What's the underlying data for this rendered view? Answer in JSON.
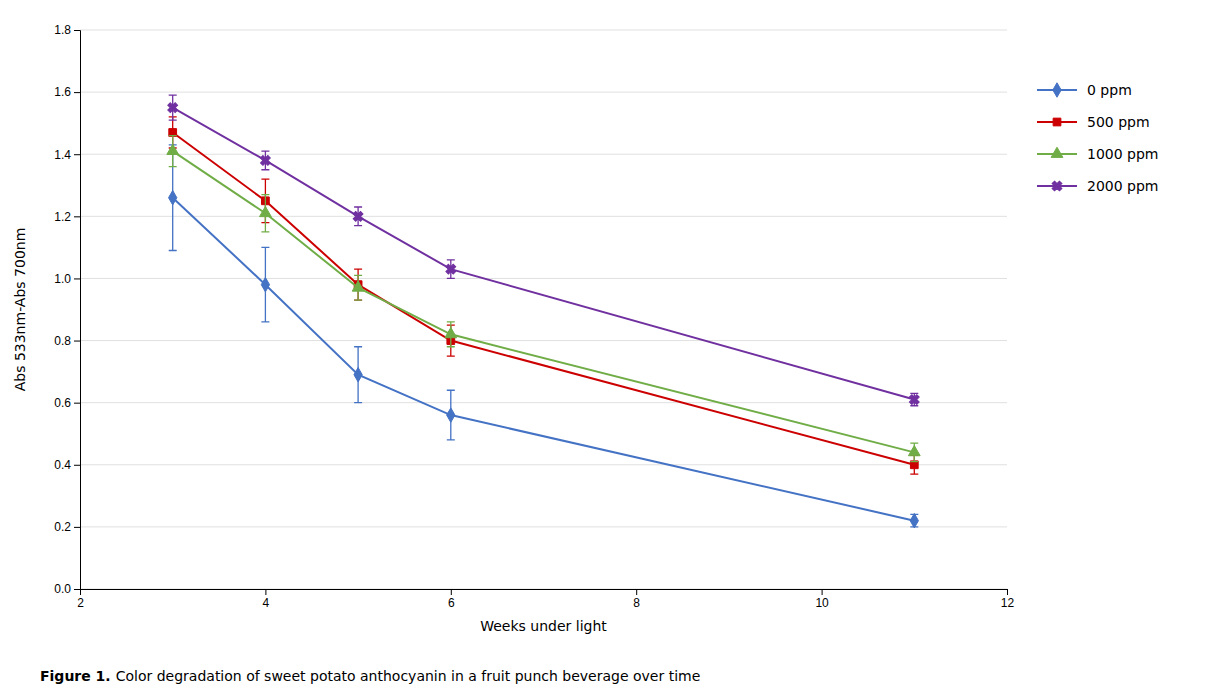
{
  "chart_data": {
    "type": "line",
    "title": "Figure 1.",
    "subtitle": "Color degradation of sweet potato anthocyanin in a fruit punch beverage over time",
    "xlabel": "Weeks under light",
    "ylabel": "Abs 533nm-Abs 700nm",
    "x": [
      3,
      4,
      5,
      6,
      11
    ],
    "series": [
      {
        "name": "0 ppm",
        "color": "#4472C4",
        "marker": "diamond",
        "line_style": "solid",
        "values": [
          1.26,
          0.98,
          0.69,
          0.56,
          0.22
        ],
        "errors": [
          0.17,
          0.12,
          0.09,
          0.08,
          0.02
        ]
      },
      {
        "name": "500 ppm",
        "color": "#CC0000",
        "marker": "square",
        "line_style": "solid",
        "values": [
          1.47,
          1.25,
          0.98,
          0.8,
          0.4
        ],
        "errors": [
          0.05,
          0.07,
          0.05,
          0.05,
          0.03
        ]
      },
      {
        "name": "1000 ppm",
        "color": "#70AD47",
        "marker": "triangle",
        "line_style": "solid",
        "values": [
          1.41,
          1.21,
          0.97,
          0.82,
          0.44
        ],
        "errors": [
          0.05,
          0.06,
          0.04,
          0.04,
          0.03
        ]
      },
      {
        "name": "2000 ppm",
        "color": "#7030A0",
        "marker": "cross",
        "line_style": "solid",
        "values": [
          1.55,
          1.38,
          1.2,
          1.03,
          0.61
        ],
        "errors": [
          0.04,
          0.03,
          0.03,
          0.03,
          0.02
        ]
      }
    ],
    "xlim": [
      2,
      12
    ],
    "ylim": [
      0.0,
      1.8
    ],
    "xticks": [
      2,
      4,
      6,
      8,
      10,
      12
    ],
    "yticks": [
      {
        "value": 0,
        "label": "0.0"
      },
      0.2,
      0.4,
      0.6,
      0.8,
      {
        "value": 1,
        "label": "1.0"
      },
      1.2,
      1.4,
      1.6,
      1.8
    ],
    "grid": true,
    "legend": "right"
  }
}
